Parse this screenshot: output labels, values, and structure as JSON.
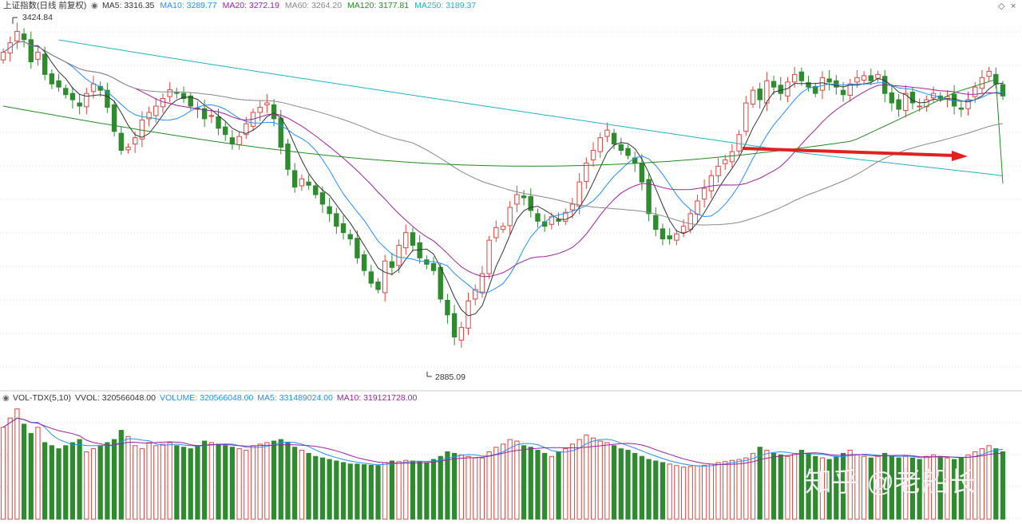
{
  "header": {
    "title": "上证指数(日线 前复权)",
    "ma": [
      {
        "label": "MA5: 3316.35",
        "color": "#333333"
      },
      {
        "label": "MA10: 3289.77",
        "color": "#1e90ff"
      },
      {
        "label": "MA20: 3272.19",
        "color": "#a020a0"
      },
      {
        "label": "MA60: 3264.20",
        "color": "#888888"
      },
      {
        "label": "MA120: 3177.81",
        "color": "#228b22"
      },
      {
        "label": "MA250: 3189.37",
        "color": "#20b2c8"
      }
    ]
  },
  "volume_header": {
    "indicator": "VOL-TDX(5,10)",
    "items": [
      {
        "label": "VVOL: 320566048.00",
        "color": "#333333"
      },
      {
        "label": "VOLUME: 320566048.00",
        "color": "#1e90ff"
      },
      {
        "label": "MA5: 331489024.00",
        "color": "#1e90ff"
      },
      {
        "label": "MA10: 319121728.00",
        "color": "#a020a0"
      }
    ]
  },
  "annotations": {
    "high_label": "3424.84",
    "low_label": "2885.09"
  },
  "watermark": "知乎 @老船长",
  "colors": {
    "up": "#e0453f",
    "down": "#2e8b2e",
    "arrow": "#e32020"
  },
  "chart_data": {
    "type": "candlestick",
    "price_range": [
      2860,
      3445
    ],
    "high": 3424.84,
    "low": 2885.09,
    "ma_latest": {
      "MA5": 3316.35,
      "MA10": 3289.77,
      "MA20": 3272.19,
      "MA60": 3264.2,
      "MA120": 3177.81,
      "MA250": 3189.37
    },
    "volume_latest": 320566048,
    "volume_ma5": 331489024,
    "volume_ma10": 319121728,
    "closes": [
      3385,
      3400,
      3418,
      3405,
      3370,
      3385,
      3350,
      3335,
      3330,
      3318,
      3310,
      3300,
      3320,
      3335,
      3325,
      3298,
      3260,
      3230,
      3235,
      3250,
      3278,
      3290,
      3300,
      3312,
      3326,
      3320,
      3312,
      3300,
      3295,
      3280,
      3285,
      3265,
      3255,
      3240,
      3252,
      3272,
      3290,
      3298,
      3305,
      3280,
      3235,
      3200,
      3172,
      3185,
      3175,
      3160,
      3145,
      3130,
      3110,
      3100,
      3090,
      3060,
      3040,
      3020,
      3010,
      3055,
      3045,
      3080,
      3100,
      3080,
      3060,
      3050,
      3040,
      2995,
      2970,
      2935,
      2950,
      2992,
      3010,
      3035,
      3088,
      3108,
      3110,
      3140,
      3160,
      3155,
      3135,
      3118,
      3110,
      3125,
      3118,
      3132,
      3145,
      3180,
      3210,
      3230,
      3250,
      3262,
      3240,
      3230,
      3222,
      3210,
      3180,
      3130,
      3105,
      3090,
      3090,
      3098,
      3110,
      3130,
      3150,
      3170,
      3190,
      3205,
      3215,
      3228,
      3255,
      3305,
      3325,
      3310,
      3340,
      3330,
      3320,
      3338,
      3350,
      3340,
      3330,
      3320,
      3345,
      3338,
      3330,
      3318,
      3335,
      3345,
      3348,
      3340,
      3350,
      3320,
      3305,
      3295,
      3320,
      3305,
      3300,
      3310,
      3320,
      3312,
      3315,
      3300,
      3295,
      3310,
      3330,
      3345,
      3355,
      3335,
      3316
    ],
    "volumes": [
      300,
      330,
      360,
      310,
      280,
      300,
      250,
      240,
      230,
      240,
      250,
      260,
      220,
      230,
      240,
      250,
      260,
      290,
      270,
      240,
      230,
      250,
      240,
      245,
      250,
      240,
      235,
      230,
      240,
      255,
      250,
      245,
      240,
      235,
      230,
      225,
      240,
      245,
      250,
      255,
      260,
      250,
      235,
      225,
      215,
      205,
      200,
      195,
      190,
      185,
      180,
      180,
      178,
      176,
      175,
      185,
      190,
      188,
      192,
      190,
      188,
      185,
      195,
      205,
      220,
      215,
      210,
      205,
      200,
      200,
      220,
      235,
      245,
      260,
      255,
      240,
      235,
      225,
      215,
      205,
      220,
      230,
      245,
      260,
      275,
      265,
      255,
      250,
      240,
      230,
      225,
      215,
      205,
      195,
      190,
      185,
      180,
      175,
      170,
      172,
      174,
      176,
      180,
      185,
      188,
      192,
      195,
      200,
      215,
      235,
      225,
      215,
      210,
      205,
      215,
      225,
      215,
      205,
      200,
      195,
      205,
      215,
      225,
      210,
      205,
      200,
      205,
      215,
      205,
      200,
      205,
      200,
      195,
      205,
      210,
      205,
      200,
      195,
      200,
      210,
      220,
      230,
      240,
      230,
      220
    ]
  }
}
